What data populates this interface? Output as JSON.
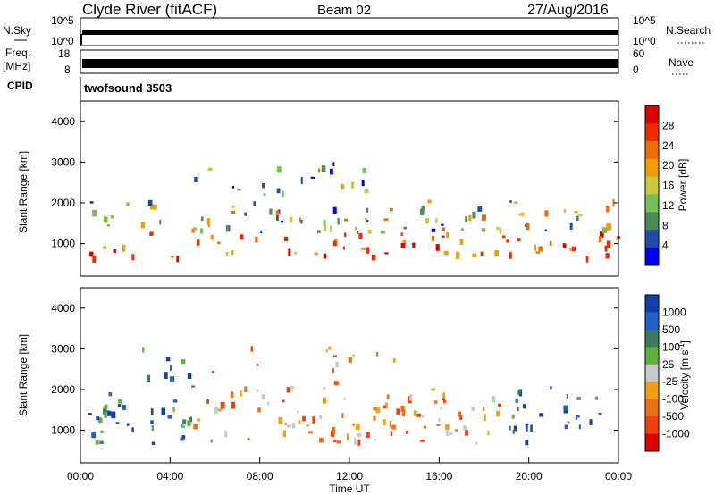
{
  "header": {
    "station": "Clyde River (fitACF)",
    "beam": "Beam 02",
    "date": "27/Aug/2016"
  },
  "top_panels": {
    "nsky_label": "N.Sky",
    "nsky_ticks": [
      "10^5",
      "10^0"
    ],
    "nsearch_label": "N.Search",
    "nsearch_ticks": [
      "10^5",
      "10^0"
    ],
    "freq_label": "Freq.",
    "freq_unit": "[MHz]",
    "freq_ticks": [
      "18",
      "8"
    ],
    "nave_label": "Nave",
    "nave_ticks": [
      "60",
      "0"
    ],
    "cpid_label": "CPID",
    "cpid_value": "twofsound 3503"
  },
  "colors": {
    "power": [
      "#0000ff",
      "#1f4ea8",
      "#4a8c5a",
      "#76c056",
      "#c8c83c",
      "#f2a000",
      "#f26a00",
      "#ee2a00",
      "#e00000"
    ],
    "velocity": [
      "#1040b0",
      "#2060c8",
      "#3a7a60",
      "#5fb040",
      "#c8c8c8",
      "#f0a010",
      "#f07010",
      "#f04010",
      "#e00000"
    ]
  },
  "chart_data": [
    {
      "type": "heatmap",
      "name": "power",
      "ylabel": "Slant Range [km]",
      "ylim": [
        200,
        4500
      ],
      "yticks": [
        1000,
        2000,
        3000,
        4000
      ],
      "xlim_hours": [
        0,
        24
      ],
      "colorbar_label": "Power [dB]",
      "colorbar_ticks": [
        "4",
        "8",
        "12",
        "16",
        "20",
        "24",
        "28"
      ],
      "colorbar_range": [
        0,
        32
      ]
    },
    {
      "type": "heatmap",
      "name": "velocity",
      "ylabel": "Slant Range [km]",
      "ylim": [
        200,
        4500
      ],
      "yticks": [
        1000,
        2000,
        3000,
        4000
      ],
      "xlim_hours": [
        0,
        24
      ],
      "xlabel": "Time UT",
      "xticks": [
        "00:00",
        "04:00",
        "08:00",
        "12:00",
        "16:00",
        "20:00",
        "00:00"
      ],
      "colorbar_label": "Velocity [m s",
      "colorbar_unit_exp": "-1",
      "colorbar_label_close": "]",
      "colorbar_ticks": [
        "1000",
        "500",
        "100",
        "25",
        "-25",
        "-100",
        "-500",
        "-1000"
      ]
    }
  ]
}
